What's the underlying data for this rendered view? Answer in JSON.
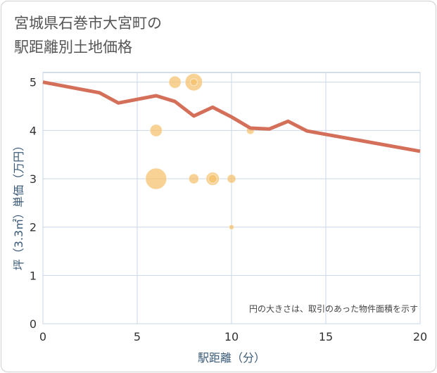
{
  "chart_data": {
    "type": "scatter",
    "title": "宮城県石巻市大宮町の\n駅距離別土地価格",
    "xlabel": "駅距離（分）",
    "ylabel": "坪（3.3㎡）単価（万円）",
    "xlim": [
      0,
      20
    ],
    "ylim": [
      0,
      5.2
    ],
    "x_ticks": [
      0,
      5,
      10,
      15,
      20
    ],
    "y_ticks": [
      0,
      1,
      2,
      3,
      4,
      5
    ],
    "grid": true,
    "annotation": "円の大きさは、取引のあった物件面積を示す",
    "colors": {
      "bubble": "#f5c06b",
      "line": "#d4705a",
      "grid": "#c9d7e6",
      "axis": "#a9bccf"
    },
    "bubbles": [
      {
        "x": 6,
        "y": 3,
        "size": 9
      },
      {
        "x": 6,
        "y": 4,
        "size": 3
      },
      {
        "x": 7,
        "y": 5,
        "size": 3
      },
      {
        "x": 8,
        "y": 5,
        "size": 6
      },
      {
        "x": 8,
        "y": 5,
        "size": 1
      },
      {
        "x": 8,
        "y": 3,
        "size": 2
      },
      {
        "x": 9,
        "y": 3,
        "size": 3.5
      },
      {
        "x": 9,
        "y": 3,
        "size": 1.5
      },
      {
        "x": 10,
        "y": 3,
        "size": 1.5
      },
      {
        "x": 10,
        "y": 2,
        "size": 0.5
      },
      {
        "x": 11,
        "y": 4,
        "size": 1.2
      }
    ],
    "trend_line": {
      "x": [
        0,
        3,
        4,
        6,
        7,
        8,
        9,
        10,
        11,
        12,
        13,
        14,
        15,
        20
      ],
      "y": [
        5,
        4.78,
        4.57,
        4.72,
        4.6,
        4.3,
        4.48,
        4.28,
        4.05,
        4.03,
        4.19,
        3.99,
        3.92,
        3.57
      ]
    }
  }
}
